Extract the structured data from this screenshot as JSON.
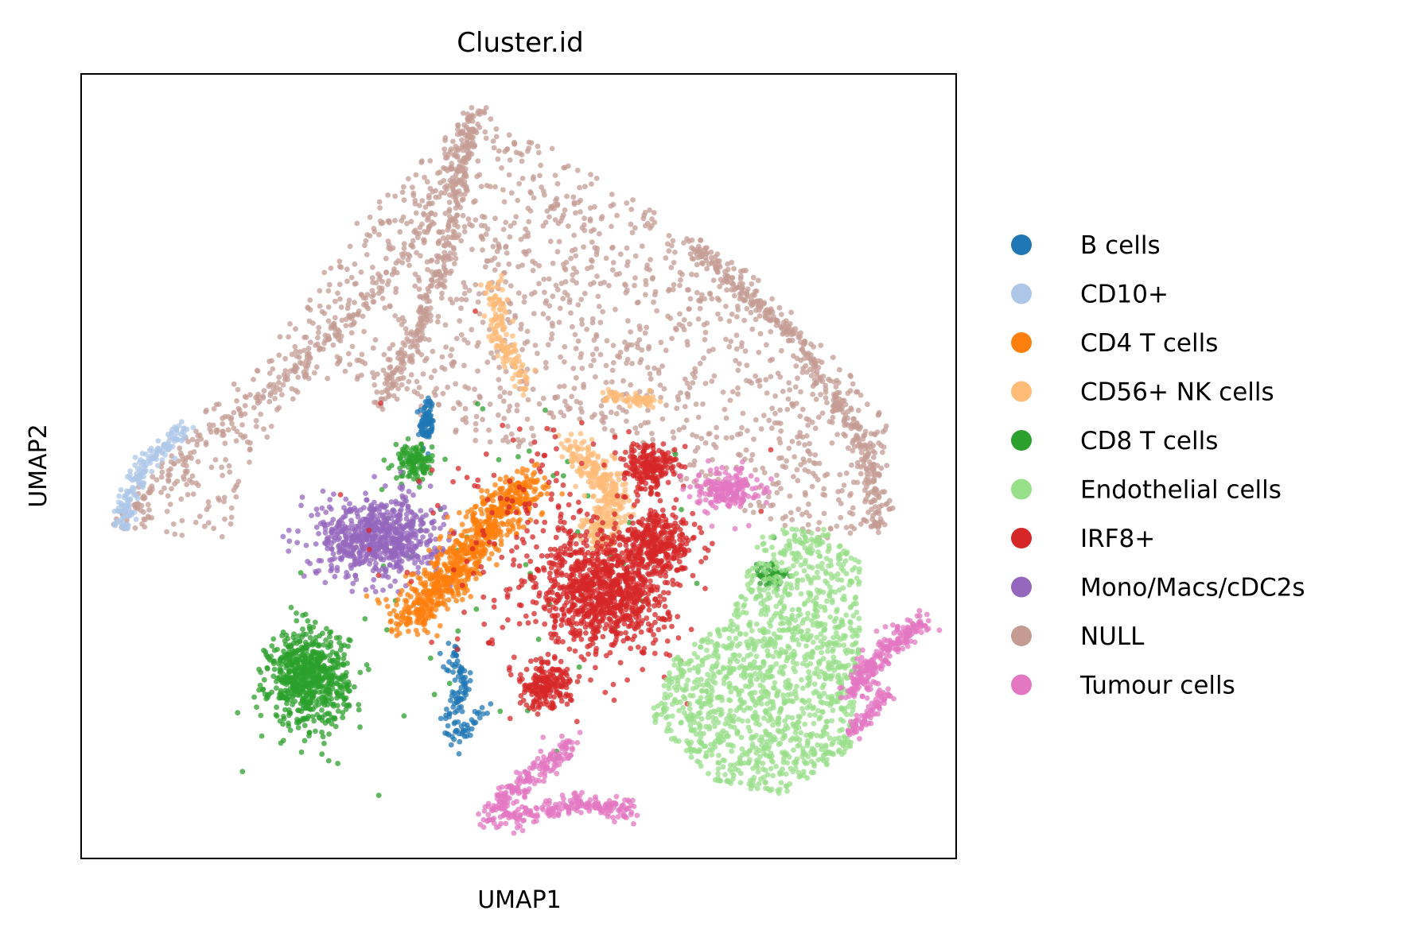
{
  "chart_data": {
    "type": "scatter",
    "title": "Cluster.id",
    "xlabel": "UMAP1",
    "ylabel": "UMAP2",
    "xlim": [
      0,
      100
    ],
    "ylim": [
      0,
      100
    ],
    "grid": false,
    "ticks": false,
    "legend_position": "right",
    "series": [
      {
        "name": "B cells",
        "color": "#1f77b4"
      },
      {
        "name": "CD10+",
        "color": "#aec7e8"
      },
      {
        "name": "CD4 T cells",
        "color": "#ff7f0e"
      },
      {
        "name": "CD56+ NK cells",
        "color": "#ffbb78"
      },
      {
        "name": "CD8 T cells",
        "color": "#2ca02c"
      },
      {
        "name": "Endothelial cells",
        "color": "#98df8a"
      },
      {
        "name": "IRF8+",
        "color": "#d62728"
      },
      {
        "name": "Mono/Macs/cDC2s",
        "color": "#9467bd"
      },
      {
        "name": "NULL",
        "color": "#c49c94"
      },
      {
        "name": "Tumour cells",
        "color": "#e377c2"
      }
    ],
    "clusters": [
      {
        "series": 8,
        "shape": "path",
        "pts": [
          [
            4,
            42
          ],
          [
            10,
            52
          ],
          [
            18,
            62
          ],
          [
            26,
            72
          ],
          [
            32,
            82
          ],
          [
            45,
            96
          ],
          [
            52,
            92
          ],
          [
            60,
            86
          ],
          [
            70,
            80
          ],
          [
            82,
            70
          ],
          [
            92,
            56
          ],
          [
            93,
            44
          ],
          [
            86,
            40
          ],
          [
            76,
            44
          ],
          [
            68,
            48
          ],
          [
            58,
            56
          ],
          [
            50,
            52
          ],
          [
            42,
            54
          ],
          [
            36,
            58
          ],
          [
            30,
            62
          ],
          [
            24,
            58
          ],
          [
            18,
            48
          ],
          [
            18,
            40
          ]
        ],
        "n": 1500
      },
      {
        "series": 8,
        "shape": "line",
        "pts": [
          [
            45,
            96
          ],
          [
            42,
            78
          ],
          [
            38,
            66
          ],
          [
            34,
            58
          ]
        ],
        "n": 300
      },
      {
        "series": 8,
        "shape": "line",
        "pts": [
          [
            70,
            78
          ],
          [
            82,
            66
          ],
          [
            90,
            52
          ],
          [
            91,
            42
          ]
        ],
        "n": 350
      },
      {
        "series": 8,
        "shape": "line",
        "pts": [
          [
            4,
            42
          ],
          [
            12,
            52
          ],
          [
            22,
            60
          ],
          [
            30,
            68
          ],
          [
            38,
            78
          ],
          [
            45,
            96
          ]
        ],
        "n": 250
      },
      {
        "series": 1,
        "shape": "line",
        "pts": [
          [
            4.5,
            42
          ],
          [
            5.5,
            47
          ],
          [
            8,
            51
          ],
          [
            12,
            55
          ]
        ],
        "n": 180
      },
      {
        "series": 0,
        "shape": "blob",
        "c": [
          39.5,
          55.5
        ],
        "r": [
          0.8,
          3
        ],
        "n": 80
      },
      {
        "series": 0,
        "shape": "line",
        "pts": [
          [
            42,
            27
          ],
          [
            44,
            22
          ],
          [
            42,
            18
          ],
          [
            43,
            15
          ],
          [
            46,
            19
          ]
        ],
        "n": 120
      },
      {
        "series": 4,
        "shape": "blob",
        "c": [
          26,
          23
        ],
        "r": [
          4.5,
          6
        ],
        "n": 700
      },
      {
        "series": 4,
        "shape": "blob",
        "c": [
          38,
          50.5
        ],
        "r": [
          2.2,
          2.2
        ],
        "n": 120
      },
      {
        "series": 4,
        "shape": "blob",
        "c": [
          79,
          36
        ],
        "r": [
          2,
          2
        ],
        "n": 50
      },
      {
        "series": 4,
        "shape": "scatter",
        "c": [
          50,
          35
        ],
        "r": [
          22,
          22
        ],
        "n": 60
      },
      {
        "series": 7,
        "shape": "blob",
        "c": [
          34,
          41
        ],
        "r": [
          7,
          5
        ],
        "n": 700
      },
      {
        "series": 2,
        "shape": "line",
        "pts": [
          [
            37,
            30
          ],
          [
            42,
            36
          ],
          [
            47,
            43
          ],
          [
            51,
            48
          ]
        ],
        "n": 800,
        "w": 3.2
      },
      {
        "series": 3,
        "shape": "line",
        "pts": [
          [
            47,
            74
          ],
          [
            48,
            66
          ],
          [
            51,
            60
          ]
        ],
        "n": 140,
        "w": 1.4
      },
      {
        "series": 3,
        "shape": "line",
        "pts": [
          [
            56,
            53
          ],
          [
            61,
            46
          ],
          [
            59,
            40
          ]
        ],
        "n": 320,
        "w": 2.4
      },
      {
        "series": 3,
        "shape": "line",
        "pts": [
          [
            60,
            59
          ],
          [
            66,
            58
          ]
        ],
        "n": 60,
        "w": 1.0
      },
      {
        "series": 6,
        "shape": "blob",
        "c": [
          60,
          34
        ],
        "r": [
          7,
          7
        ],
        "n": 900
      },
      {
        "series": 6,
        "shape": "blob",
        "c": [
          66,
          40
        ],
        "r": [
          4,
          4
        ],
        "n": 300
      },
      {
        "series": 6,
        "shape": "blob",
        "c": [
          65,
          50
        ],
        "r": [
          3,
          3
        ],
        "n": 200
      },
      {
        "series": 6,
        "shape": "blob",
        "c": [
          53,
          22
        ],
        "r": [
          3,
          3
        ],
        "n": 200
      },
      {
        "series": 6,
        "shape": "scatter",
        "c": [
          54,
          38
        ],
        "r": [
          14,
          15
        ],
        "n": 250
      },
      {
        "series": 5,
        "shape": "path",
        "pts": [
          [
            65,
            18
          ],
          [
            72,
            10
          ],
          [
            80,
            8
          ],
          [
            88,
            14
          ],
          [
            89,
            28
          ],
          [
            89,
            38
          ],
          [
            85,
            42
          ],
          [
            78,
            42
          ],
          [
            74,
            30
          ],
          [
            68,
            26
          ]
        ],
        "n": 1400
      },
      {
        "series": 9,
        "shape": "line",
        "pts": [
          [
            88,
            21
          ],
          [
            92,
            27
          ],
          [
            95,
            29
          ],
          [
            96,
            30
          ]
        ],
        "n": 240,
        "w": 1.8
      },
      {
        "series": 9,
        "shape": "line",
        "pts": [
          [
            88,
            16
          ],
          [
            92,
            21
          ]
        ],
        "n": 80,
        "w": 1.0
      },
      {
        "series": 9,
        "shape": "blob",
        "c": [
          74,
          47
        ],
        "r": [
          3.5,
          2.5
        ],
        "n": 200
      },
      {
        "series": 9,
        "shape": "line",
        "pts": [
          [
            46,
            5
          ],
          [
            51,
            10
          ],
          [
            56,
            15
          ]
        ],
        "n": 200,
        "w": 1.8
      },
      {
        "series": 9,
        "shape": "line",
        "pts": [
          [
            49,
            5
          ],
          [
            56,
            7
          ],
          [
            63,
            6
          ]
        ],
        "n": 180,
        "w": 1.4
      }
    ]
  }
}
